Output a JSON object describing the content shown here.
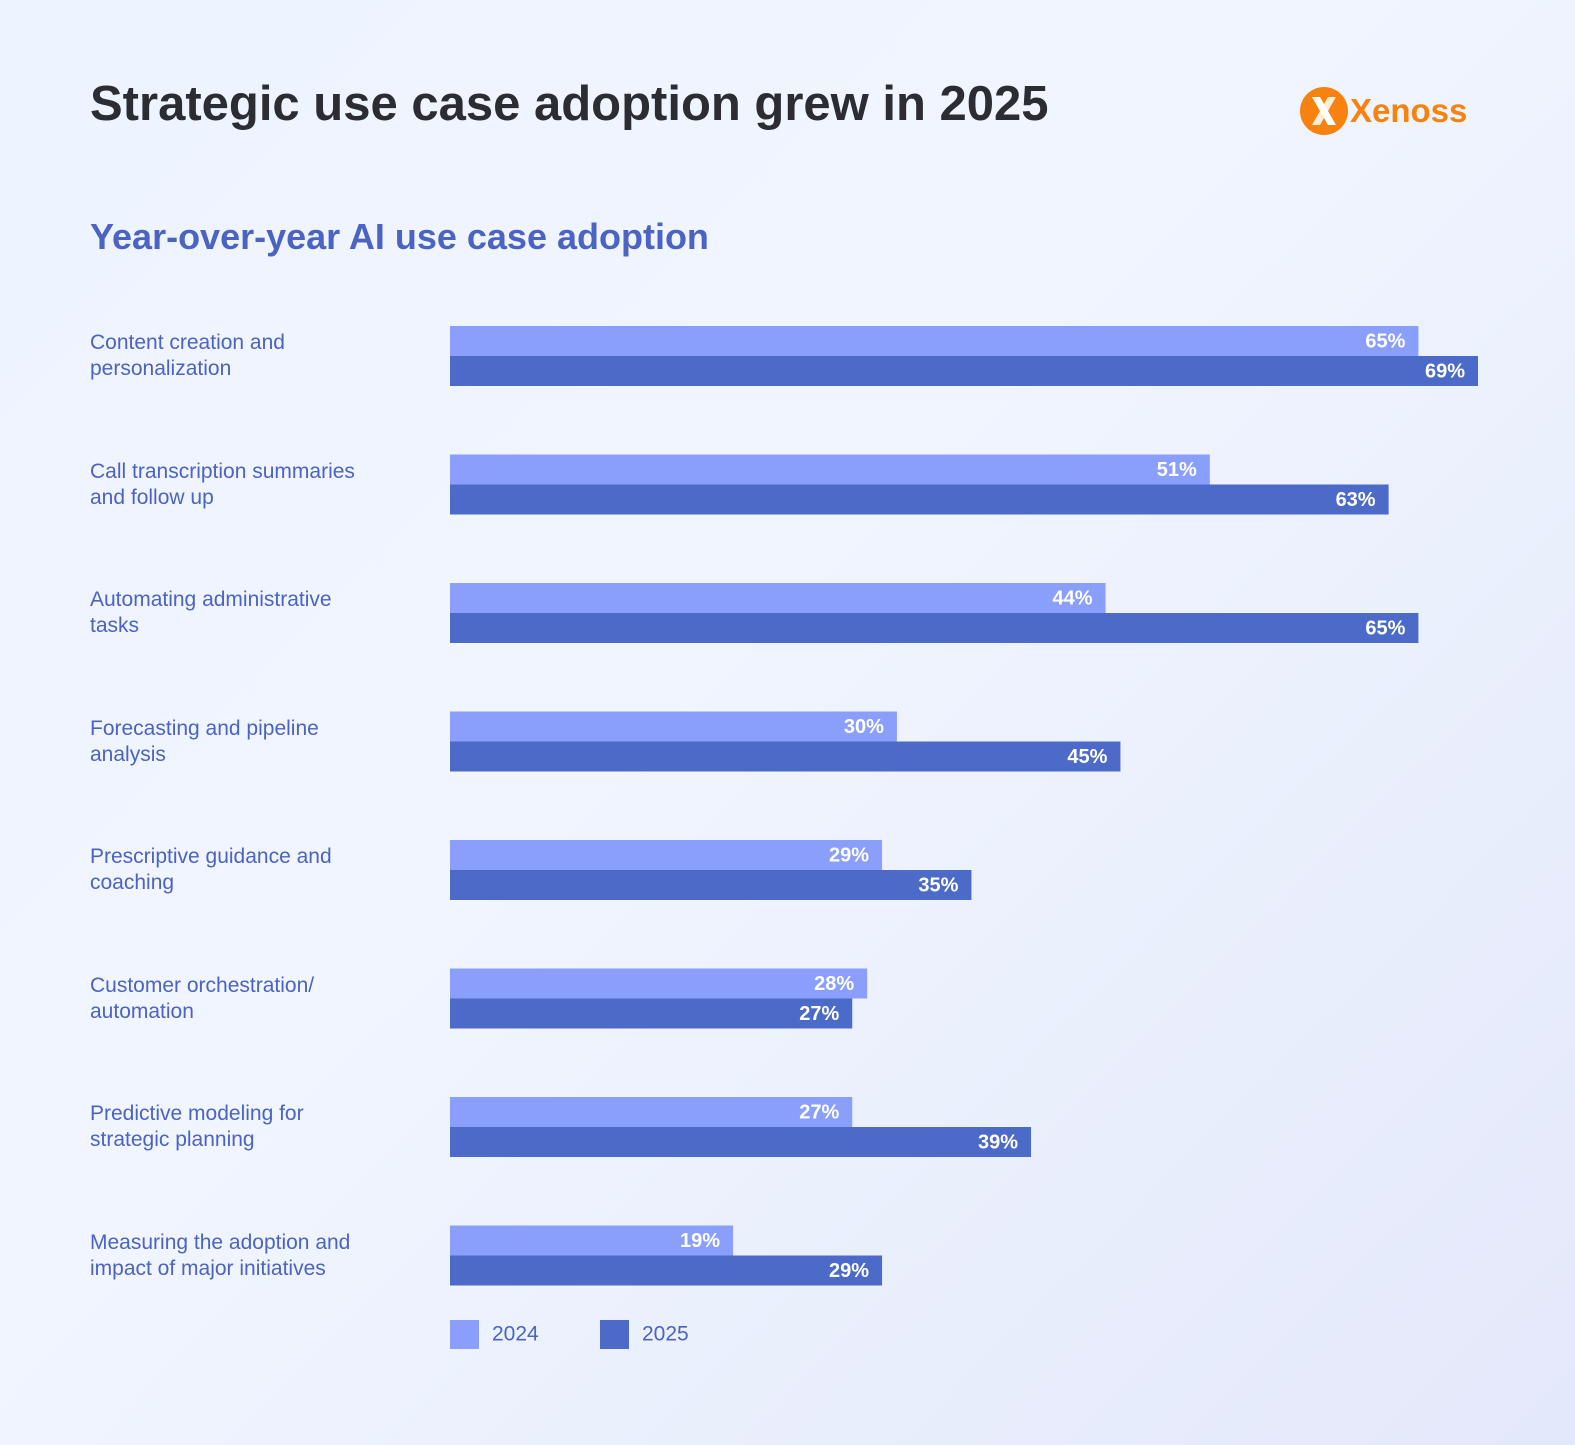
{
  "chart_data": {
    "type": "bar",
    "orientation": "horizontal",
    "title": "Strategic use case adoption grew in 2025",
    "subtitle": "Year-over-year AI use case adoption",
    "logo": "Xenoss",
    "categories": [
      "Content creation and\npersonalization",
      "Call transcription summaries\nand follow up",
      "Automating administrative\ntasks",
      "Forecasting and pipeline\nanalysis",
      "Prescriptive guidance and\ncoaching",
      "Customer orchestration/\nautomation",
      "Predictive modeling for\nstrategic planning",
      "Measuring the adoption and\nimpact of major initiatives"
    ],
    "series": [
      {
        "name": "2024",
        "color": "#8a9ffc",
        "values": [
          65,
          51,
          44,
          30,
          29,
          28,
          27,
          19
        ],
        "value_labels": [
          "65%",
          "51%",
          "44%",
          "30%",
          "29%",
          "28%",
          "27%",
          "19%"
        ]
      },
      {
        "name": "2025",
        "color": "#4c6ac8",
        "values": [
          69,
          63,
          65,
          45,
          35,
          27,
          39,
          29
        ],
        "value_labels": [
          "69%",
          "63%",
          "65%",
          "45%",
          "35%",
          "27%",
          "39%",
          "29%"
        ]
      }
    ],
    "legend": "bottom-left",
    "grid": false
  }
}
